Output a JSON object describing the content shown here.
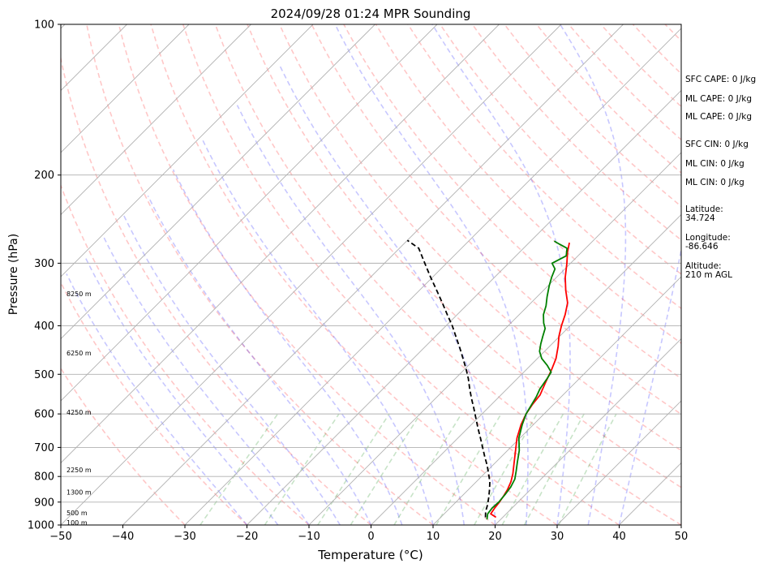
{
  "chart_data": {
    "type": "line",
    "title": "2024/09/28 01:24 MPR Sounding",
    "xlabel": "Temperature (°C)",
    "ylabel": "Pressure (hPa)",
    "xlim": [
      -50,
      50
    ],
    "ylim": [
      1000,
      100
    ],
    "y_scale": "log",
    "grid": true,
    "x_ticks": [
      -50,
      -40,
      -30,
      -20,
      -10,
      0,
      10,
      20,
      30,
      40,
      50
    ],
    "y_ticks": [
      1000,
      900,
      800,
      700,
      600,
      500,
      400,
      300,
      200,
      100
    ],
    "series": [
      {
        "color": "#ff0000",
        "points": [
          [
            18.9,
            965
          ],
          [
            17.5,
            950
          ],
          [
            17.2,
            925
          ],
          [
            17.0,
            900
          ],
          [
            16.7,
            875
          ],
          [
            16.3,
            850
          ],
          [
            15.6,
            820
          ],
          [
            14.6,
            790
          ],
          [
            13.0,
            750
          ],
          [
            11.3,
            710
          ],
          [
            9.5,
            670
          ],
          [
            8.0,
            630
          ],
          [
            7.1,
            600
          ],
          [
            6.6,
            575
          ],
          [
            6.3,
            550
          ],
          [
            5.2,
            520
          ],
          [
            4.1,
            490
          ],
          [
            3.0,
            465
          ],
          [
            1.4,
            440
          ],
          [
            -0.1,
            420
          ],
          [
            -1.4,
            400
          ],
          [
            -2.6,
            380
          ],
          [
            -4.1,
            360
          ],
          [
            -6.4,
            340
          ],
          [
            -8.6,
            320
          ],
          [
            -10.6,
            300
          ],
          [
            -12.3,
            285
          ],
          [
            -13.5,
            273
          ]
        ]
      },
      {
        "color": "#008000",
        "points": [
          [
            17.8,
            975
          ],
          [
            17.0,
            950
          ],
          [
            16.8,
            925
          ],
          [
            16.9,
            900
          ],
          [
            16.7,
            870
          ],
          [
            16.4,
            840
          ],
          [
            15.8,
            810
          ],
          [
            14.7,
            780
          ],
          [
            13.5,
            750
          ],
          [
            11.9,
            710
          ],
          [
            9.8,
            670
          ],
          [
            8.2,
            630
          ],
          [
            7.1,
            600
          ],
          [
            6.5,
            575
          ],
          [
            6.0,
            555
          ],
          [
            5.3,
            535
          ],
          [
            4.8,
            510
          ],
          [
            4.4,
            495
          ],
          [
            2.7,
            480
          ],
          [
            0.7,
            465
          ],
          [
            -0.8,
            450
          ],
          [
            -1.8,
            435
          ],
          [
            -2.7,
            420
          ],
          [
            -3.6,
            405
          ],
          [
            -4.7,
            395
          ],
          [
            -6.1,
            380
          ],
          [
            -7.1,
            365
          ],
          [
            -8.4,
            350
          ],
          [
            -9.8,
            333
          ],
          [
            -10.8,
            320
          ],
          [
            -11.6,
            308
          ],
          [
            -13.0,
            300
          ],
          [
            -11.9,
            290
          ],
          [
            -13.0,
            280
          ],
          [
            -14.8,
            275
          ],
          [
            -16.2,
            271
          ]
        ]
      },
      {
        "color": "#000000",
        "dashed": true,
        "points": [
          [
            17.2,
            965
          ],
          [
            16.3,
            940
          ],
          [
            15.5,
            910
          ],
          [
            14.5,
            880
          ],
          [
            13.4,
            850
          ],
          [
            12.2,
            820
          ],
          [
            10.7,
            790
          ],
          [
            9.1,
            760
          ],
          [
            7.3,
            730
          ],
          [
            5.5,
            700
          ],
          [
            3.6,
            670
          ],
          [
            1.6,
            640
          ],
          [
            -0.3,
            612
          ],
          [
            -2.2,
            585
          ],
          [
            -4.1,
            560
          ],
          [
            -6.0,
            535
          ],
          [
            -7.9,
            510
          ],
          [
            -9.9,
            487
          ],
          [
            -12.0,
            465
          ],
          [
            -14.2,
            443
          ],
          [
            -16.6,
            421
          ],
          [
            -19.0,
            400
          ],
          [
            -21.6,
            380
          ],
          [
            -24.3,
            360
          ],
          [
            -27.2,
            340
          ],
          [
            -30.3,
            320
          ],
          [
            -33.5,
            300
          ],
          [
            -36.9,
            280
          ],
          [
            -40.0,
            270
          ]
        ]
      }
    ],
    "height_labels": [
      "100 m",
      "500 m",
      "1300 m",
      "2250 m",
      "4250 m",
      "6250 m",
      "8250 m"
    ],
    "height_label_pressures": [
      989,
      945,
      860,
      776,
      595,
      453,
      345
    ],
    "background_lines": {
      "isotherm_color": "#b0b0b0",
      "dry_adiabat_color": "#ff0000",
      "moist_adiabat_color": "#0000ff",
      "mixing_ratio_color": "#008000"
    }
  },
  "stats": [
    "SFC CAPE: 0 J/kg",
    "ML CAPE: 0 J/kg",
    "ML CAPE: 0 J/kg",
    "SFC CIN: 0 J/kg",
    "ML CIN: 0 J/kg",
    "ML CIN: 0 J/kg",
    "Latitude:\n34.724",
    "Longitude:\n-86.646",
    "Altitude:\n210 m AGL"
  ]
}
